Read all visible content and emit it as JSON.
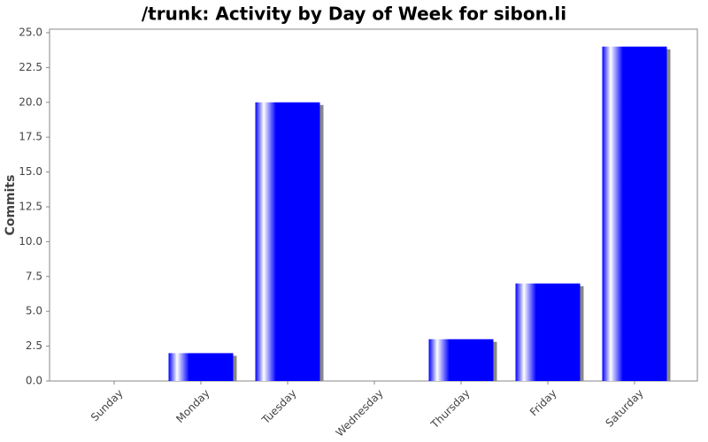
{
  "chart_data": {
    "type": "bar",
    "title": "/trunk: Activity by Day of Week for sibon.li",
    "y_label": "Commits",
    "categories": [
      "Sunday",
      "Monday",
      "Tuesday",
      "Wednesday",
      "Thursday",
      "Friday",
      "Saturday"
    ],
    "values": [
      0,
      2,
      20,
      0,
      3,
      7,
      24
    ],
    "color": "#0000ff",
    "ylim": [
      0,
      25.25
    ],
    "yticks": [
      {
        "value": 0,
        "label": "0.0"
      },
      2.5,
      {
        "value": 5,
        "label": "5.0"
      },
      7.5,
      {
        "value": 10,
        "label": "10.0"
      },
      12.5,
      {
        "value": 15,
        "label": "15.0"
      },
      17.5,
      {
        "value": 20,
        "label": "20.0"
      },
      22.5,
      {
        "value": 25,
        "label": "25.0"
      }
    ]
  }
}
